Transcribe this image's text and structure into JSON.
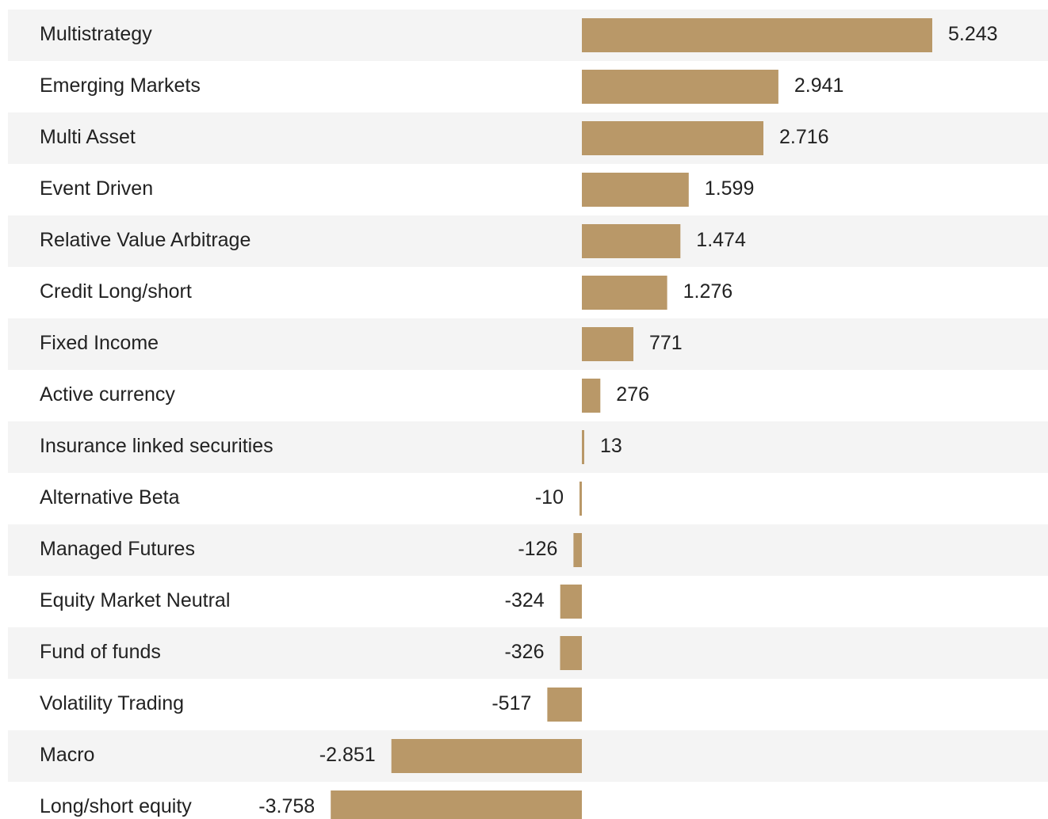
{
  "chart_data": {
    "type": "bar",
    "orientation": "horizontal",
    "categories": [
      "Multistrategy",
      "Emerging Markets",
      "Multi Asset",
      "Event Driven",
      "Relative Value Arbitrage",
      "Credit Long/short",
      "Fixed Income",
      "Active currency",
      "Insurance linked securities",
      "Alternative Beta",
      "Managed Futures",
      "Equity Market Neutral",
      "Fund of funds",
      "Volatility Trading",
      "Macro",
      "Long/short equity"
    ],
    "values": [
      5243,
      2941,
      2716,
      1599,
      1474,
      1276,
      771,
      276,
      13,
      -10,
      -126,
      -324,
      -326,
      -517,
      -2851,
      -3758
    ],
    "value_labels": [
      "5.243",
      "2.941",
      "2.716",
      "1.599",
      "1.474",
      "1.276",
      "771",
      "276",
      "13",
      "-10",
      "-126",
      "-324",
      "-326",
      "-517",
      "-2.851",
      "-3.758"
    ],
    "title": "",
    "xlabel": "",
    "ylabel": "",
    "grid": false,
    "legend": "none",
    "colors": {
      "bar": "#b99868",
      "row_band": "#f4f4f4",
      "text": "#222222"
    }
  }
}
